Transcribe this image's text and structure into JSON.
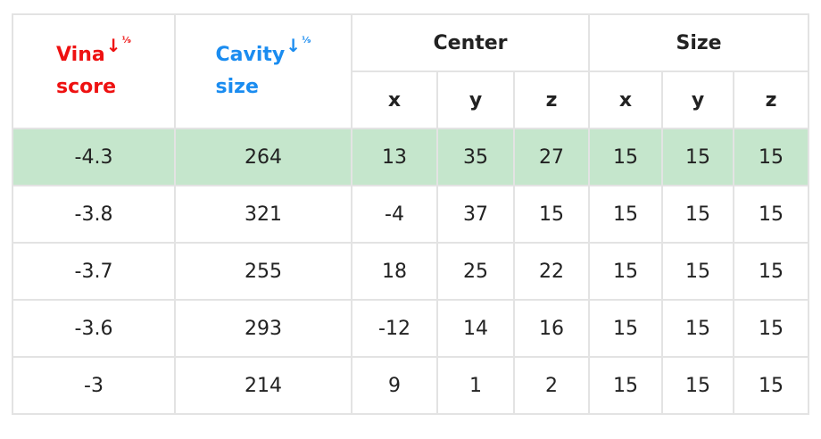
{
  "header": {
    "vina_line1": "Vina",
    "vina_line2": "score",
    "cavity_line1": "Cavity",
    "cavity_line2": "size",
    "sort_glyph": "↓",
    "sort_mini": "¹⁄₉",
    "center": "Center",
    "size": "Size",
    "axes": [
      "x",
      "y",
      "z",
      "x",
      "y",
      "z"
    ]
  },
  "colors": {
    "vina_header": "#ee1111",
    "cavity_header": "#1a8cf0",
    "highlight_row": "#c5e6cc"
  },
  "rows": [
    {
      "vina": "-4.3",
      "cavity": "264",
      "cx": "13",
      "cy": "35",
      "cz": "27",
      "sx": "15",
      "sy": "15",
      "sz": "15"
    },
    {
      "vina": "-3.8",
      "cavity": "321",
      "cx": "-4",
      "cy": "37",
      "cz": "15",
      "sx": "15",
      "sy": "15",
      "sz": "15"
    },
    {
      "vina": "-3.7",
      "cavity": "255",
      "cx": "18",
      "cy": "25",
      "cz": "22",
      "sx": "15",
      "sy": "15",
      "sz": "15"
    },
    {
      "vina": "-3.6",
      "cavity": "293",
      "cx": "-12",
      "cy": "14",
      "cz": "16",
      "sx": "15",
      "sy": "15",
      "sz": "15"
    },
    {
      "vina": "-3",
      "cavity": "214",
      "cx": "9",
      "cy": "1",
      "cz": "2",
      "sx": "15",
      "sy": "15",
      "sz": "15"
    }
  ]
}
